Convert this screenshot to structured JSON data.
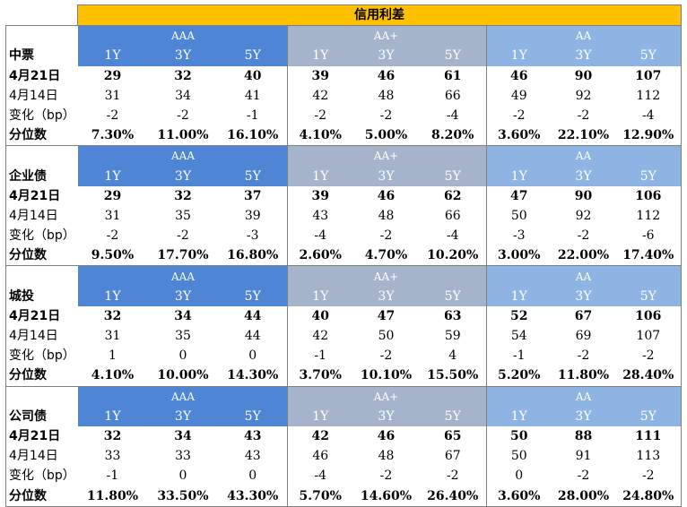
{
  "title": "信用利差",
  "ratings": [
    "AAA",
    "AA+",
    "AA"
  ],
  "tenors": [
    "1Y",
    "3Y",
    "5Y"
  ],
  "row_labels": {
    "current": "4月21日",
    "previous": "4月14日",
    "change": "变化（bp）",
    "percentile": "分位数"
  },
  "sections": [
    {
      "name": "中票",
      "current": [
        "29",
        "32",
        "40",
        "39",
        "46",
        "61",
        "46",
        "90",
        "107"
      ],
      "previous": [
        "31",
        "34",
        "41",
        "42",
        "48",
        "66",
        "49",
        "92",
        "112"
      ],
      "change": [
        "-2",
        "-2",
        "-1",
        "-2",
        "-2",
        "-4",
        "-2",
        "-2",
        "-4"
      ],
      "percentile": [
        "7.30%",
        "11.00%",
        "16.10%",
        "4.10%",
        "5.00%",
        "8.20%",
        "3.60%",
        "22.10%",
        "12.90%"
      ]
    },
    {
      "name": "企业债",
      "current": [
        "29",
        "32",
        "37",
        "39",
        "46",
        "62",
        "47",
        "90",
        "106"
      ],
      "previous": [
        "31",
        "35",
        "39",
        "43",
        "48",
        "66",
        "50",
        "92",
        "112"
      ],
      "change": [
        "-2",
        "-2",
        "-3",
        "-4",
        "-2",
        "-4",
        "-3",
        "-2",
        "-6"
      ],
      "percentile": [
        "9.50%",
        "17.70%",
        "16.80%",
        "2.60%",
        "4.70%",
        "10.20%",
        "3.00%",
        "22.00%",
        "17.40%"
      ]
    },
    {
      "name": "城投",
      "current": [
        "32",
        "34",
        "44",
        "40",
        "47",
        "63",
        "52",
        "67",
        "106"
      ],
      "previous": [
        "31",
        "35",
        "44",
        "42",
        "50",
        "59",
        "54",
        "69",
        "107"
      ],
      "change": [
        "1",
        "0",
        "0",
        "-1",
        "-2",
        "4",
        "-1",
        "-2",
        "-2"
      ],
      "percentile": [
        "4.10%",
        "10.00%",
        "14.30%",
        "3.70%",
        "10.10%",
        "15.50%",
        "5.20%",
        "11.80%",
        "28.40%"
      ]
    },
    {
      "name": "公司债",
      "current": [
        "32",
        "34",
        "43",
        "42",
        "46",
        "65",
        "50",
        "88",
        "111"
      ],
      "previous": [
        "33",
        "33",
        "43",
        "46",
        "48",
        "67",
        "50",
        "91",
        "113"
      ],
      "change": [
        "-1",
        "0",
        "0",
        "-4",
        "-2",
        "-2",
        "0",
        "-2",
        "-2"
      ],
      "percentile": [
        "11.80%",
        "33.50%",
        "43.30%",
        "5.70%",
        "14.60%",
        "26.40%",
        "3.60%",
        "28.00%",
        "24.80%"
      ]
    }
  ],
  "colors": {
    "title_bg": "#ffc000",
    "aaa_bg": "#4e85d5",
    "aa_plus_bg": "#a5b4cb",
    "aa_bg": "#8eb4e3",
    "header_text": "#ffffff"
  }
}
